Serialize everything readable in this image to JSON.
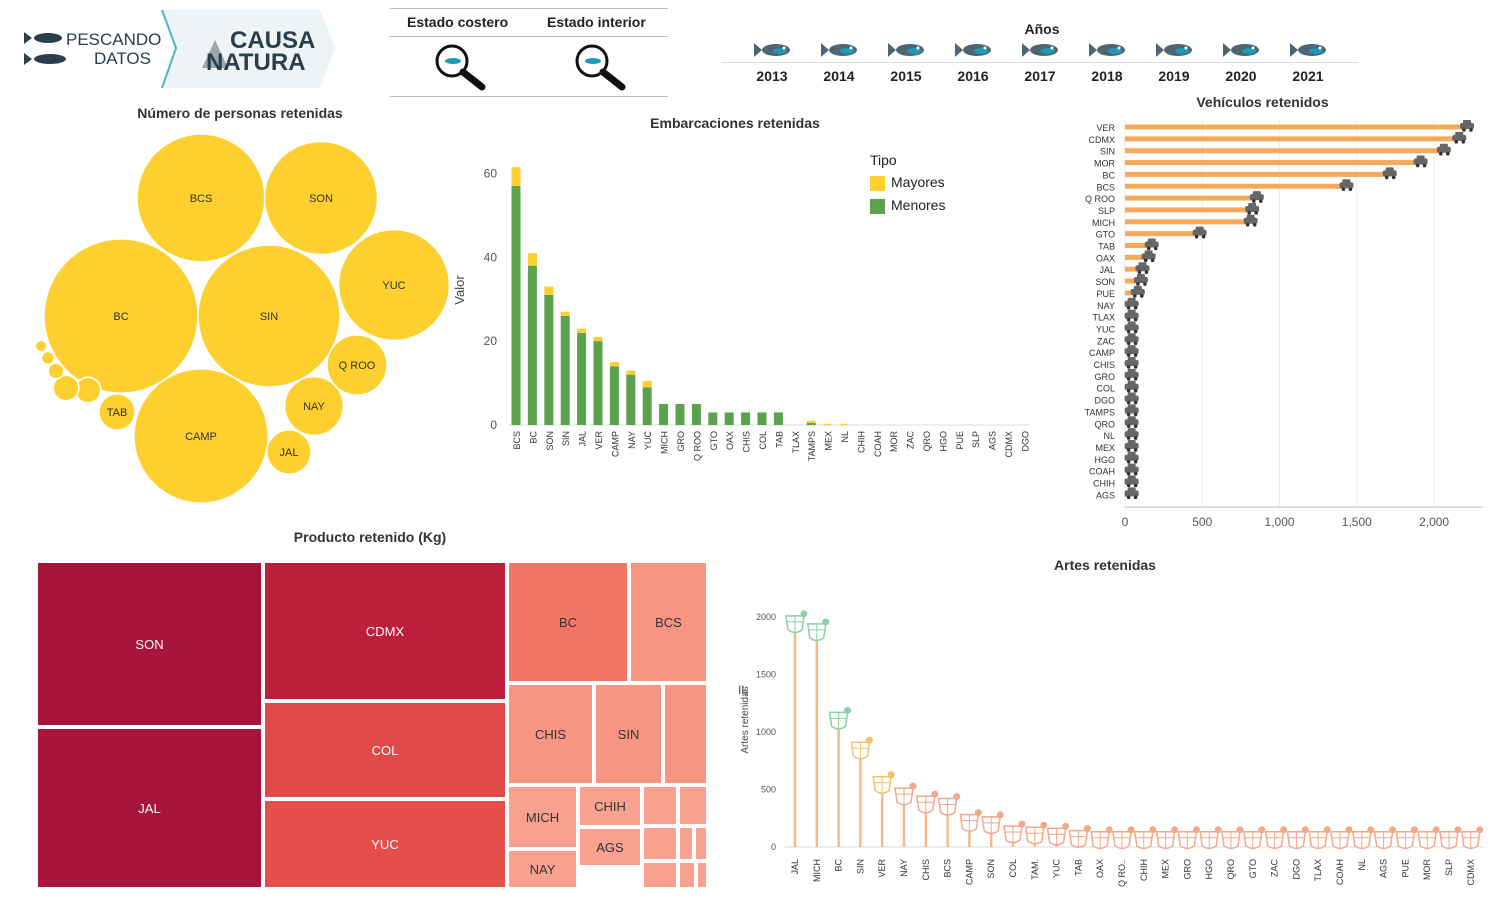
{
  "logos": {
    "pescando_line1": "PESCANDO",
    "pescando_line2": "DATOS",
    "causa_line1": "CAUSA",
    "causa_line2": "NATURA"
  },
  "filters": {
    "coastal_label": "Estado costero",
    "interior_label": "Estado interior"
  },
  "years": {
    "label": "Años",
    "items": [
      "2013",
      "2014",
      "2015",
      "2016",
      "2017",
      "2018",
      "2019",
      "2020",
      "2021"
    ]
  },
  "colors": {
    "yellow": "#fdd02f",
    "green": "#5aa24b",
    "orange": "#f6a85b",
    "teal": "#1e9bb3",
    "dark_red": "#a7163a"
  },
  "bubbles": {
    "title": "Número de personas retenidas",
    "items": [
      {
        "label": "BCS",
        "value": 1000
      },
      {
        "label": "SON",
        "value": 780
      },
      {
        "label": "BC",
        "value": 1450
      },
      {
        "label": "SIN",
        "value": 1230
      },
      {
        "label": "YUC",
        "value": 750
      },
      {
        "label": "Q ROO",
        "value": 220
      },
      {
        "label": "NAY",
        "value": 210
      },
      {
        "label": "CAMP",
        "value": 1100
      },
      {
        "label": "JAL",
        "value": 120
      },
      {
        "label": "TAB",
        "value": 80
      },
      {
        "label": "",
        "value": 40
      },
      {
        "label": "",
        "value": 40
      },
      {
        "label": "",
        "value": 15
      },
      {
        "label": "",
        "value": 10
      },
      {
        "label": "",
        "value": 8
      }
    ]
  },
  "boats": {
    "title": "Embarcaciones retenidas",
    "legend_title": "Tipo",
    "legend": [
      "Mayores",
      "Menores"
    ]
  },
  "vehicles": {
    "title": "Vehículos retenidos"
  },
  "products": {
    "title": "Producto retenido (Kg)",
    "cells": [
      {
        "label": "SON",
        "value": 2400
      },
      {
        "label": "JAL",
        "value": 2400
      },
      {
        "label": "CDMX",
        "value": 1550
      },
      {
        "label": "COL",
        "value": 1100
      },
      {
        "label": "YUC",
        "value": 1050
      },
      {
        "label": "BC",
        "value": 560
      },
      {
        "label": "BCS",
        "value": 330
      },
      {
        "label": "CHIS",
        "value": 450
      },
      {
        "label": "SIN",
        "value": 330
      },
      {
        "label": "",
        "value": 210
      },
      {
        "label": "MICH",
        "value": 310
      },
      {
        "label": "NAY",
        "value": 170
      },
      {
        "label": "CHIH",
        "value": 240
      },
      {
        "label": "AGS",
        "value": 180
      },
      {
        "label": "",
        "value": 100
      },
      {
        "label": "",
        "value": 60
      },
      {
        "label": "",
        "value": 50
      },
      {
        "label": "",
        "value": 40
      },
      {
        "label": "",
        "value": 30
      },
      {
        "label": "",
        "value": 30
      },
      {
        "label": "",
        "value": 20
      },
      {
        "label": "",
        "value": 10
      }
    ]
  },
  "chart_data": [
    {
      "type": "bar",
      "title": "Embarcaciones retenidas",
      "xlabel": "",
      "ylabel": "Valor",
      "ylim": [
        0,
        65
      ],
      "yticks": [
        0,
        20,
        40,
        60
      ],
      "categories": [
        "BCS",
        "BC",
        "SON",
        "SIN",
        "JAL",
        "VER",
        "CAMP",
        "NAY",
        "YUC",
        "MICH",
        "GRO",
        "Q ROO",
        "GTO",
        "OAX",
        "CHIS",
        "COL",
        "TAB",
        "TLAX",
        "TAMPS",
        "MEX",
        "NL",
        "CHIH",
        "COAH",
        "MOR",
        "ZAC",
        "QRO",
        "HGO",
        "PUE",
        "SLP",
        "AGS",
        "CDMX",
        "DGO"
      ],
      "series": [
        {
          "name": "Menores",
          "values": [
            57,
            38,
            31,
            26,
            22,
            20,
            14,
            12,
            9,
            5,
            5,
            5,
            3,
            3,
            3,
            3,
            3,
            0,
            0.5,
            0,
            0,
            0,
            0,
            0,
            0,
            0,
            0,
            0,
            0,
            0,
            0,
            0
          ]
        },
        {
          "name": "Mayores",
          "values": [
            4.5,
            3,
            2,
            1,
            1,
            1,
            1,
            1,
            1.5,
            0,
            0,
            0,
            0,
            0,
            0,
            0,
            0,
            0,
            0.5,
            0.3,
            0.3,
            0,
            0,
            0,
            0,
            0,
            0,
            0,
            0,
            0,
            0,
            0
          ]
        }
      ]
    },
    {
      "type": "bar",
      "orientation": "horizontal",
      "title": "Vehículos retenidos",
      "xlim": [
        0,
        2200
      ],
      "xticks": [
        0,
        500,
        1000,
        1500,
        2000
      ],
      "xtick_labels": [
        "0",
        "500",
        "1,000",
        "1,500",
        "2,000"
      ],
      "categories": [
        "VER",
        "CDMX",
        "SIN",
        "MOR",
        "BC",
        "BCS",
        "Q ROO",
        "SLP",
        "MICH",
        "GTO",
        "TAB",
        "OAX",
        "JAL",
        "SON",
        "PUE",
        "NAY",
        "TLAX",
        "YUC",
        "ZAC",
        "CAMP",
        "CHIS",
        "GRO",
        "COL",
        "DGO",
        "TAMPS",
        "QRO",
        "NL",
        "MEX",
        "HGO",
        "COAH",
        "CHIH",
        "AGS"
      ],
      "values": [
        2200,
        2150,
        2050,
        1900,
        1700,
        1420,
        840,
        810,
        800,
        470,
        160,
        140,
        100,
        90,
        70,
        30,
        30,
        30,
        30,
        30,
        30,
        30,
        30,
        30,
        30,
        30,
        30,
        30,
        30,
        30,
        30,
        30
      ]
    },
    {
      "type": "lollipop",
      "title": "Artes retenidas",
      "ylabel": "Artes retenidas",
      "ylim": [
        0,
        2150
      ],
      "yticks": [
        0,
        500,
        1000,
        1500,
        2000
      ],
      "categories": [
        "JAL",
        "MICH",
        "BC",
        "SIN",
        "VER",
        "NAY",
        "CHIS",
        "BCS",
        "CAMP",
        "SON",
        "COL",
        "TAM.",
        "YUC",
        "TAB",
        "OAX",
        "Q RO..",
        "CHIH",
        "MEX",
        "GRO",
        "HGO",
        "QRO",
        "GTO",
        "ZAC",
        "DGO",
        "TLAX",
        "COAH",
        "NL",
        "AGS",
        "PUE",
        "MOR",
        "SLP",
        "CDMX"
      ],
      "values": [
        1960,
        1890,
        1120,
        860,
        560,
        460,
        390,
        370,
        230,
        210,
        130,
        120,
        110,
        90,
        80,
        80,
        80,
        80,
        80,
        80,
        80,
        80,
        80,
        80,
        80,
        80,
        80,
        80,
        80,
        80,
        80,
        80
      ]
    },
    {
      "type": "treemap",
      "title": "Producto retenido (Kg)",
      "categories": [
        "SON",
        "JAL",
        "CDMX",
        "COL",
        "YUC",
        "BC",
        "BCS",
        "CHIS",
        "SIN",
        "MICH",
        "NAY",
        "CHIH",
        "AGS"
      ]
    }
  ]
}
